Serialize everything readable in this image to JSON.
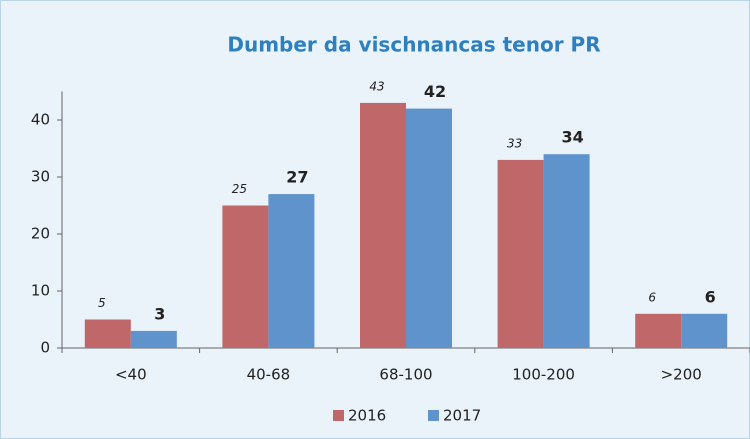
{
  "chart_data": {
    "type": "bar",
    "title": "Dumber da vischnancas tenor PR",
    "categories": [
      "<40",
      "40-68",
      "68-100",
      "100-200",
      ">200"
    ],
    "series": [
      {
        "name": "2016",
        "color": "#c0676a",
        "values": [
          5,
          25,
          43,
          33,
          6
        ]
      },
      {
        "name": "2017",
        "color": "#5f93cc",
        "values": [
          3,
          27,
          42,
          34,
          6
        ]
      }
    ],
    "ylim": [
      0,
      45
    ],
    "yticks": [
      0,
      10,
      20,
      30,
      40
    ],
    "grid": false,
    "legend": "bottom"
  }
}
